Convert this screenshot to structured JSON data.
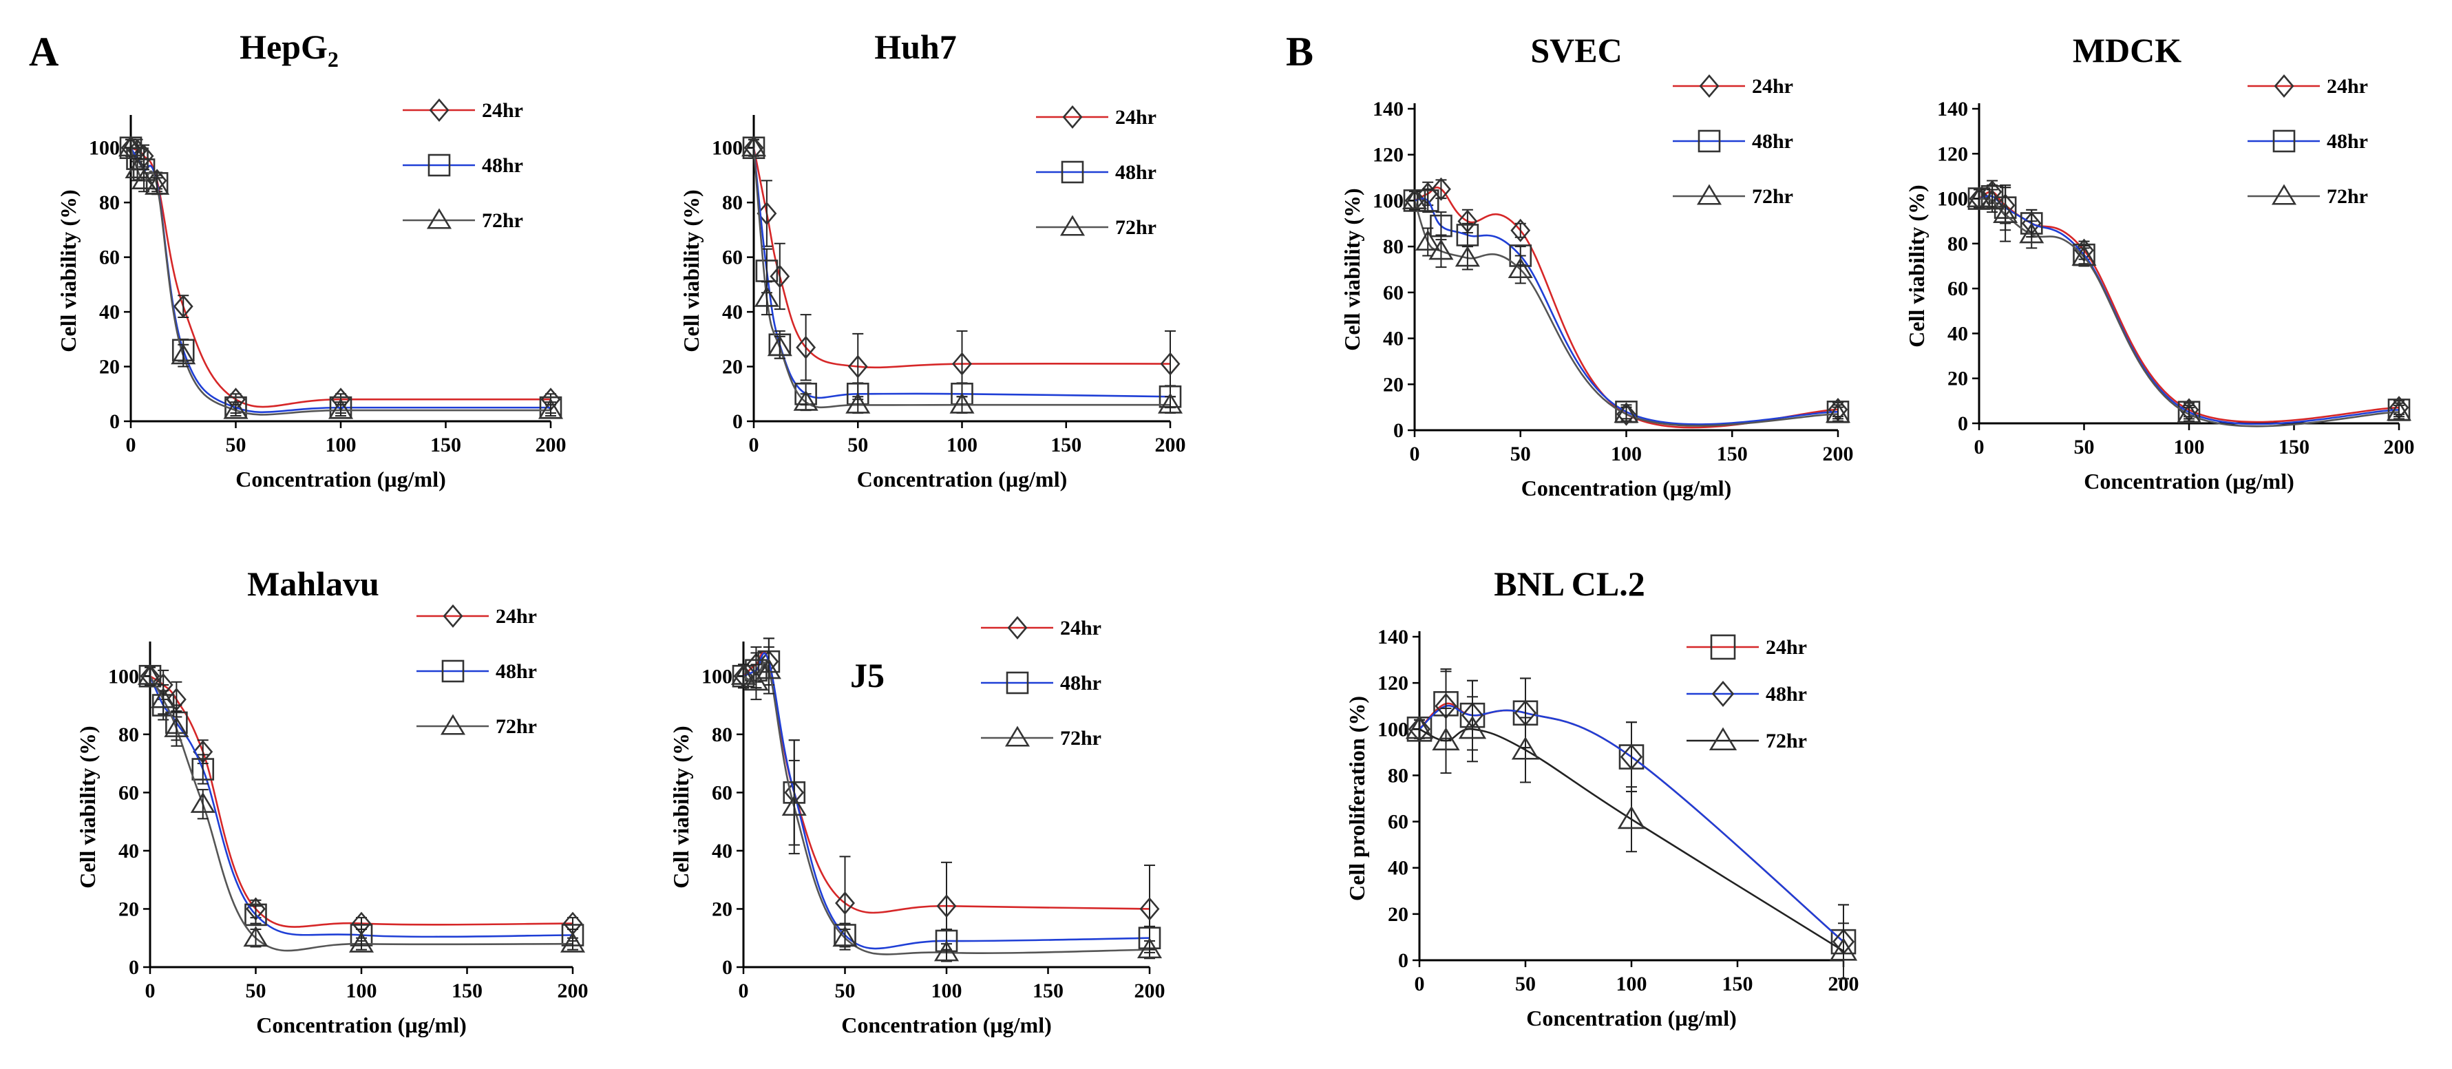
{
  "panel_letters": [
    "A",
    "B"
  ],
  "chart_data": [
    {
      "type": "line",
      "title": "HepG2",
      "title_main": "HepG",
      "title_sub": "2",
      "xlabel": "Concentration  (µg/ml)",
      "ylabel": "Cell viability  (%)",
      "xlim": [
        0,
        200
      ],
      "ylim": [
        0,
        110
      ],
      "xticks": [
        0,
        50,
        100,
        150,
        200
      ],
      "yticks": [
        0,
        20,
        40,
        60,
        80,
        100
      ],
      "x": [
        0,
        3.125,
        6.25,
        12.5,
        25,
        50,
        100,
        200
      ],
      "series": [
        {
          "name": "24hr",
          "marker": "diamond",
          "color": "#d62728",
          "values": [
            100,
            99,
            97,
            88,
            42,
            8,
            8,
            8
          ],
          "errors": [
            3,
            4,
            4,
            3,
            4,
            2,
            2,
            2
          ]
        },
        {
          "name": "48hr",
          "marker": "square",
          "color": "#1f3fd6",
          "values": [
            100,
            96,
            92,
            87,
            26,
            5,
            5,
            5
          ],
          "errors": [
            3,
            4,
            4,
            3,
            4,
            2,
            2,
            2
          ]
        },
        {
          "name": "72hr",
          "marker": "triangle",
          "color": "#555555",
          "values": [
            100,
            92,
            88,
            86,
            24,
            4,
            4,
            4
          ],
          "errors": [
            3,
            4,
            4,
            3,
            4,
            2,
            2,
            2
          ]
        }
      ]
    },
    {
      "type": "line",
      "title": "Huh7",
      "xlabel": "Concentration  (µg/ml)",
      "ylabel": "Cell viability  (%)",
      "xlim": [
        0,
        200
      ],
      "ylim": [
        0,
        110
      ],
      "xticks": [
        0,
        50,
        100,
        150,
        200
      ],
      "yticks": [
        0,
        20,
        40,
        60,
        80,
        100
      ],
      "x": [
        0,
        6.25,
        12.5,
        25,
        50,
        100,
        200
      ],
      "series": [
        {
          "name": "24hr",
          "marker": "diamond",
          "color": "#d62728",
          "values": [
            100,
            76,
            53,
            27,
            20,
            21,
            21
          ],
          "errors": [
            3,
            12,
            12,
            12,
            12,
            12,
            12
          ]
        },
        {
          "name": "48hr",
          "marker": "square",
          "color": "#1f3fd6",
          "values": [
            100,
            55,
            28,
            10,
            10,
            10,
            9
          ],
          "errors": [
            3,
            8,
            5,
            4,
            4,
            4,
            4
          ]
        },
        {
          "name": "72hr",
          "marker": "triangle",
          "color": "#555555",
          "values": [
            100,
            45,
            27,
            7,
            6,
            6,
            6
          ],
          "errors": [
            3,
            6,
            4,
            3,
            3,
            3,
            3
          ]
        }
      ]
    },
    {
      "type": "line",
      "title": "Mahlavu",
      "xlabel": "Concentration  (µg/ml)",
      "ylabel": "Cell viability  (%)",
      "xlim": [
        0,
        200
      ],
      "ylim": [
        0,
        110
      ],
      "xticks": [
        0,
        50,
        100,
        150,
        200
      ],
      "yticks": [
        0,
        20,
        40,
        60,
        80,
        100
      ],
      "x": [
        0,
        6.25,
        12.5,
        25,
        50,
        100,
        200
      ],
      "series": [
        {
          "name": "24hr",
          "marker": "diamond",
          "color": "#d62728",
          "values": [
            100,
            97,
            92,
            74,
            20,
            15,
            15
          ],
          "errors": [
            3,
            5,
            6,
            4,
            3,
            2,
            2
          ]
        },
        {
          "name": "48hr",
          "marker": "square",
          "color": "#1f3fd6",
          "values": [
            100,
            90,
            84,
            68,
            18,
            11,
            11
          ],
          "errors": [
            3,
            5,
            6,
            5,
            3,
            2,
            2
          ]
        },
        {
          "name": "72hr",
          "marker": "triangle",
          "color": "#555555",
          "values": [
            100,
            92,
            82,
            56,
            10,
            8,
            8
          ],
          "errors": [
            3,
            5,
            6,
            5,
            3,
            2,
            2
          ]
        }
      ]
    },
    {
      "type": "line",
      "title": "J5",
      "xlabel": "Concentration  (µg/ml)",
      "ylabel": "Cell viability  (%)",
      "xlim": [
        0,
        200
      ],
      "ylim": [
        0,
        110
      ],
      "xticks": [
        0,
        50,
        100,
        150,
        200
      ],
      "yticks": [
        0,
        20,
        40,
        60,
        80,
        100
      ],
      "x": [
        0,
        6.25,
        12.5,
        25,
        50,
        100,
        200
      ],
      "series": [
        {
          "name": "24hr",
          "marker": "diamond",
          "color": "#d62728",
          "values": [
            100,
            104,
            105,
            60,
            22,
            21,
            20
          ],
          "errors": [
            4,
            6,
            8,
            18,
            16,
            15,
            15
          ]
        },
        {
          "name": "48hr",
          "marker": "square",
          "color": "#1f3fd6",
          "values": [
            100,
            102,
            105,
            60,
            11,
            9,
            10
          ],
          "errors": [
            4,
            6,
            8,
            18,
            4,
            4,
            4
          ]
        },
        {
          "name": "72hr",
          "marker": "triangle",
          "color": "#555555",
          "values": [
            100,
            98,
            102,
            55,
            10,
            5,
            6
          ],
          "errors": [
            4,
            6,
            8,
            16,
            3,
            3,
            3
          ]
        }
      ]
    },
    {
      "type": "line",
      "title": "SVEC",
      "xlabel": "Concentration  (µg/ml)",
      "ylabel": "Cell viability  (%)",
      "xlim": [
        0,
        200
      ],
      "ylim": [
        0,
        140
      ],
      "xticks": [
        0,
        50,
        100,
        150,
        200
      ],
      "yticks": [
        0,
        20,
        40,
        60,
        80,
        100,
        120,
        140
      ],
      "x": [
        0,
        6.25,
        12.5,
        25,
        50,
        100,
        200
      ],
      "series": [
        {
          "name": "24hr",
          "marker": "diamond",
          "color": "#d62728",
          "values": [
            100,
            103,
            105,
            91,
            87,
            7,
            9
          ],
          "errors": [
            4,
            5,
            4,
            5,
            3,
            3,
            3
          ]
        },
        {
          "name": "48hr",
          "marker": "square",
          "color": "#1f3fd6",
          "values": [
            100,
            100,
            89,
            85,
            76,
            8,
            8
          ],
          "errors": [
            4,
            5,
            6,
            5,
            4,
            3,
            3
          ]
        },
        {
          "name": "72hr",
          "marker": "triangle",
          "color": "#555555",
          "values": [
            100,
            82,
            78,
            75,
            70,
            7,
            7
          ],
          "errors": [
            4,
            6,
            7,
            5,
            6,
            3,
            3
          ]
        }
      ]
    },
    {
      "type": "line",
      "title": "MDCK",
      "xlabel": "Concentration  (µg/ml)",
      "ylabel": "Cell viability  (%)",
      "xlim": [
        0,
        200
      ],
      "ylim": [
        0,
        140
      ],
      "xticks": [
        0,
        50,
        100,
        150,
        200
      ],
      "yticks": [
        0,
        20,
        40,
        60,
        80,
        100,
        120,
        140
      ],
      "x": [
        0,
        6.25,
        12.5,
        25,
        50,
        100,
        200
      ],
      "series": [
        {
          "name": "24hr",
          "marker": "diamond",
          "color": "#d62728",
          "values": [
            100,
            103,
            97,
            89,
            77,
            6,
            7
          ],
          "errors": [
            4,
            5,
            8,
            6,
            4,
            3,
            3
          ]
        },
        {
          "name": "48hr",
          "marker": "square",
          "color": "#1f3fd6",
          "values": [
            100,
            101,
            96,
            89,
            75,
            5,
            6
          ],
          "errors": [
            4,
            5,
            10,
            6,
            4,
            3,
            3
          ]
        },
        {
          "name": "72hr",
          "marker": "triangle",
          "color": "#555555",
          "values": [
            100,
            99,
            93,
            84,
            74,
            4,
            5
          ],
          "errors": [
            4,
            5,
            12,
            6,
            4,
            3,
            3
          ]
        }
      ]
    },
    {
      "type": "line",
      "title": "BNL CL.2",
      "xlabel": "Concentration  (µg/ml)",
      "ylabel": "Cell proliferation  (%)",
      "xlim": [
        0,
        200
      ],
      "ylim": [
        0,
        140
      ],
      "xticks": [
        0,
        50,
        100,
        150,
        200
      ],
      "yticks": [
        0,
        20,
        40,
        60,
        80,
        100,
        120,
        140
      ],
      "x": [
        0,
        12.5,
        25,
        50,
        100,
        200
      ],
      "series": [
        {
          "name": "24hr",
          "marker": "square",
          "color": "#d62728",
          "values": [
            100,
            111,
            106,
            107,
            88,
            8
          ],
          "errors": [
            4,
            15,
            15,
            15,
            15,
            16
          ]
        },
        {
          "name": "48hr",
          "marker": "diamond",
          "color": "#1f3fd6",
          "values": [
            100,
            110,
            106,
            107,
            88,
            8
          ],
          "errors": [
            4,
            15,
            15,
            15,
            15,
            16
          ]
        },
        {
          "name": "72hr",
          "marker": "triangle",
          "color": "#222222",
          "values": [
            100,
            95,
            100,
            91,
            61,
            4
          ],
          "errors": [
            4,
            14,
            14,
            14,
            14,
            12
          ]
        }
      ]
    }
  ]
}
